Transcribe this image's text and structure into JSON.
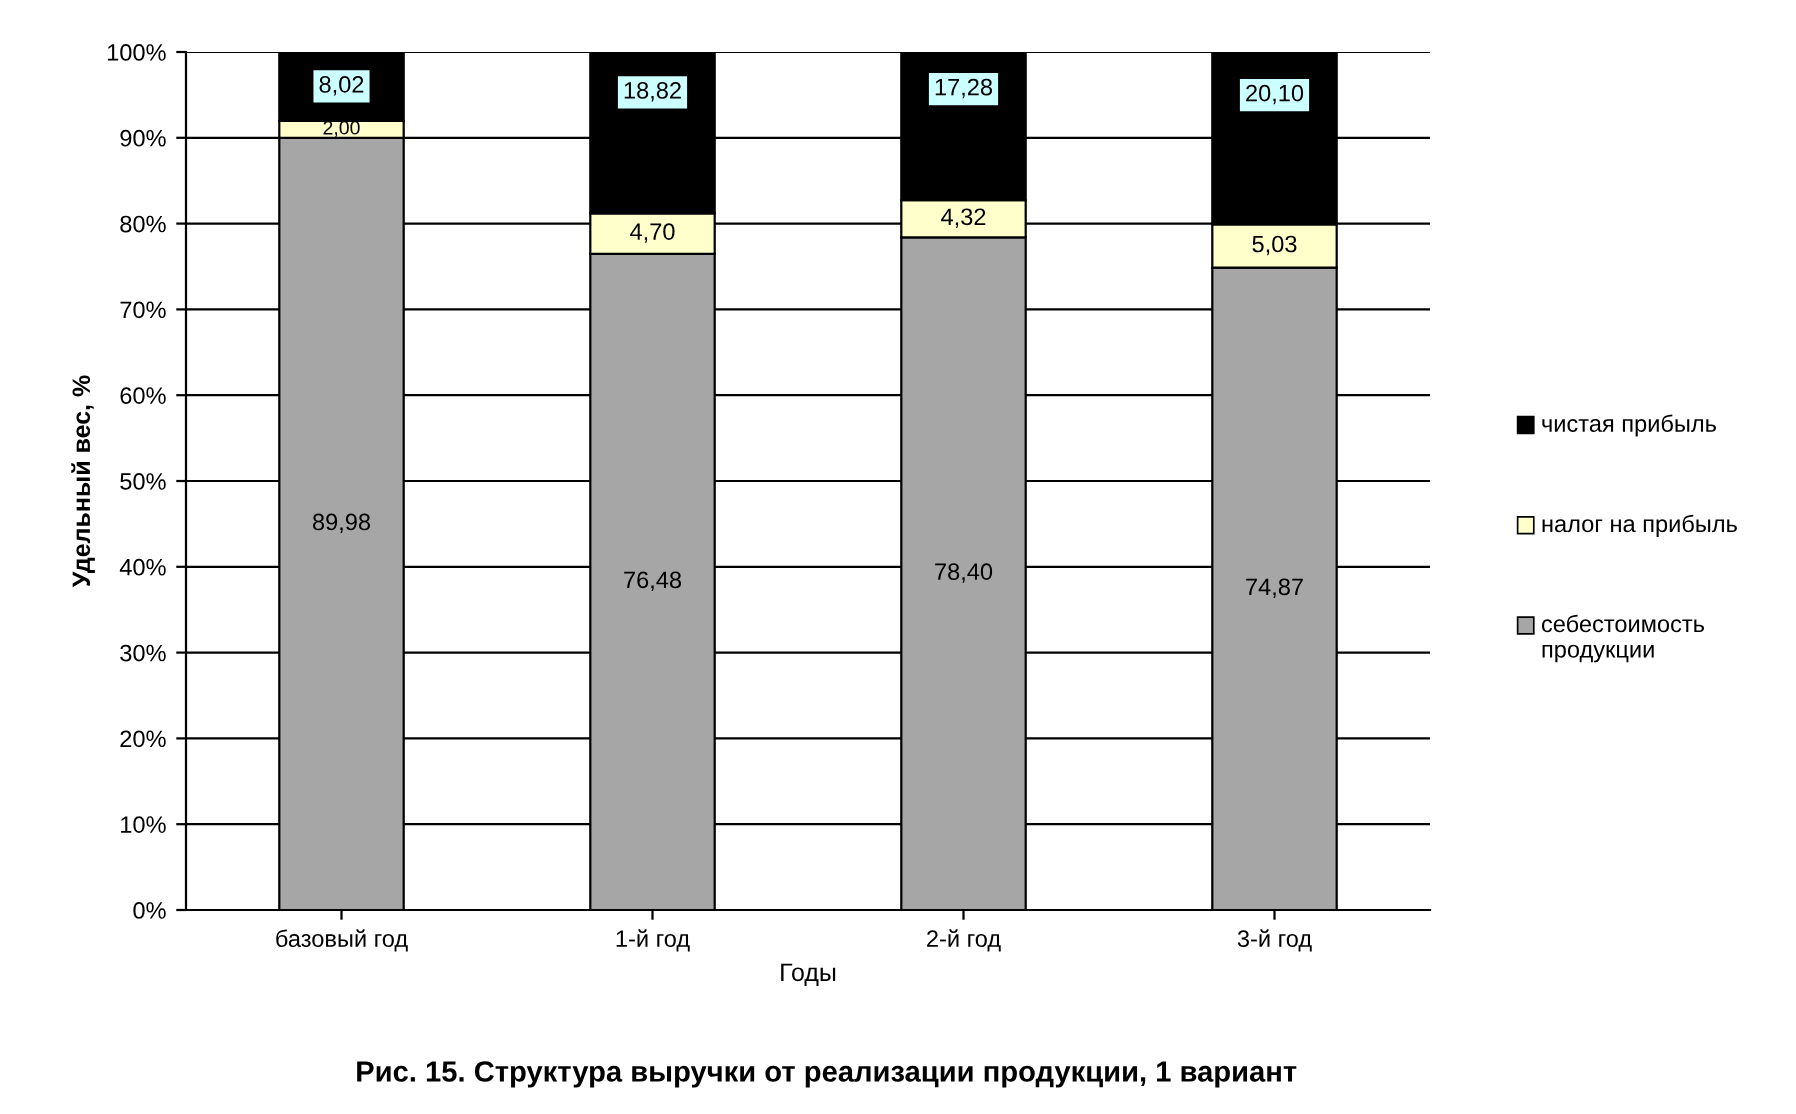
{
  "chart_data": {
    "type": "bar",
    "stacked": true,
    "title": "Рис. 15. Структура выручки от реализации продукции, 1 вариант",
    "xlabel": "Годы",
    "ylabel": "Удельный вес, %",
    "categories": [
      "базовый год",
      "1-й год",
      "2-й год",
      "3-й год"
    ],
    "series": [
      {
        "name": "себестоимость продукции",
        "color": "#a6a6a6",
        "values": [
          89.98,
          76.48,
          78.4,
          74.87
        ],
        "value_labels": [
          "89,98",
          "76,48",
          "78,40",
          "74,87"
        ]
      },
      {
        "name": "налог на прибыль",
        "color": "#ffffcc",
        "values": [
          2.0,
          4.7,
          4.32,
          5.03
        ],
        "value_labels": [
          "2,00",
          "4,70",
          "4,32",
          "5,03"
        ]
      },
      {
        "name": "чистая прибыль",
        "color": "#000000",
        "values": [
          8.02,
          18.82,
          17.28,
          20.1
        ],
        "value_labels": [
          "8,02",
          "18,82",
          "17,28",
          "20,10"
        ]
      }
    ],
    "ylim": [
      0,
      100
    ],
    "yticks": [
      {
        "value": 0,
        "label": "0%"
      },
      {
        "value": 10,
        "label": "10%"
      },
      {
        "value": 20,
        "label": "20%"
      },
      {
        "value": 30,
        "label": "30%"
      },
      {
        "value": 40,
        "label": "40%"
      },
      {
        "value": 50,
        "label": "50%"
      },
      {
        "value": 60,
        "label": "60%"
      },
      {
        "value": 70,
        "label": "70%"
      },
      {
        "value": 80,
        "label": "80%"
      },
      {
        "value": 90,
        "label": "90%"
      },
      {
        "value": 100,
        "label": "100%"
      }
    ],
    "grid": "y",
    "legend": "right"
  }
}
